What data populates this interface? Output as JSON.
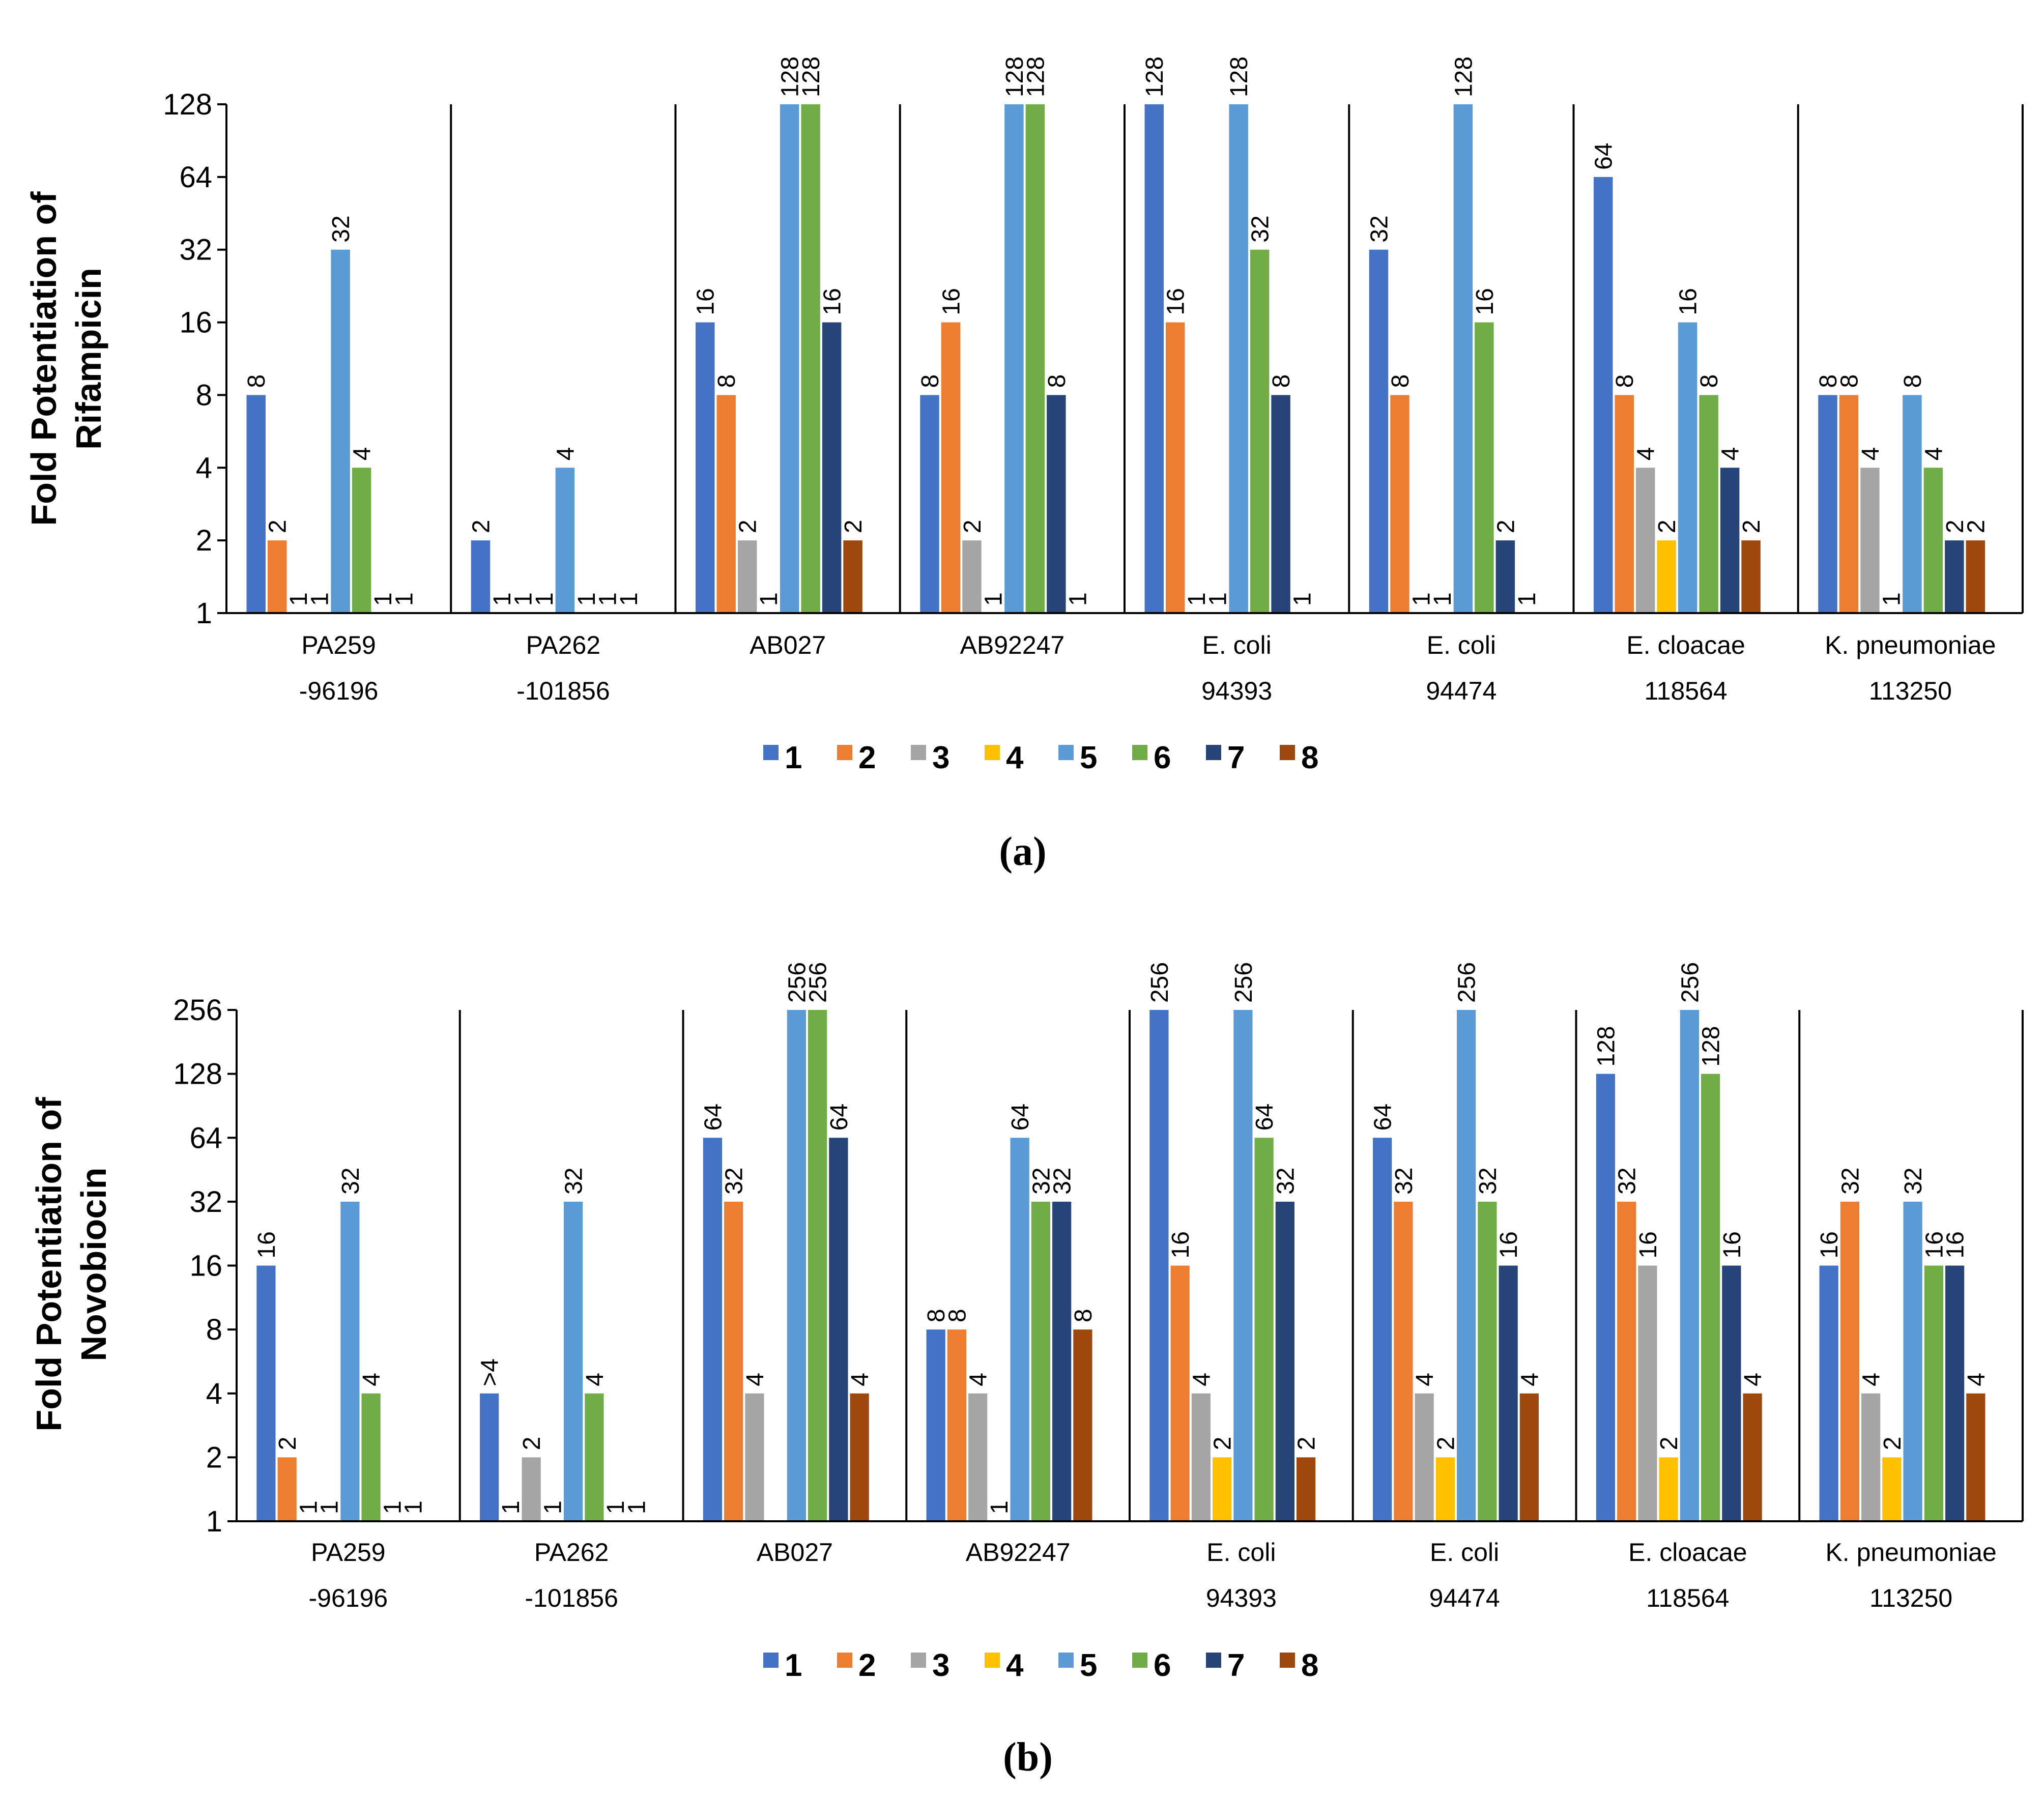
{
  "legend": [
    "1",
    "2",
    "3",
    "4",
    "5",
    "6",
    "7",
    "8"
  ],
  "colors": [
    "#4472C4",
    "#ED7D31",
    "#A5A5A5",
    "#FFC000",
    "#5B9BD5",
    "#70AD47",
    "#264478",
    "#9E480E"
  ],
  "chart_data": [
    {
      "type": "bar",
      "panel": "(a)",
      "ylabel": "Fold Potentiation of Rifampicin",
      "yscale": "log2",
      "ylim": [
        1,
        128
      ],
      "yticks": [
        "1",
        "2",
        "4",
        "8",
        "16",
        "32",
        "64",
        "128"
      ],
      "categories": [
        [
          "PA259",
          "-96196"
        ],
        [
          "PA262",
          "-101856"
        ],
        [
          "AB027"
        ],
        [
          "AB92247"
        ],
        [
          "E. coli",
          "94393"
        ],
        [
          "E. coli",
          "94474"
        ],
        [
          "E. cloacae",
          "118564"
        ],
        [
          "K. pneumoniae",
          "113250"
        ]
      ],
      "groups": [
        {
          "values": [
            8,
            2,
            1,
            1,
            32,
            4,
            1,
            1
          ],
          "labels": [
            "8",
            "2",
            "1",
            "1",
            "32",
            "4",
            "1",
            "1"
          ]
        },
        {
          "values": [
            2,
            1,
            1,
            1,
            4,
            1,
            1,
            1
          ],
          "labels": [
            "2",
            "1",
            "1",
            "1",
            "4",
            "1",
            "1",
            "1"
          ]
        },
        {
          "values": [
            16,
            8,
            2,
            1,
            128,
            128,
            16,
            2
          ],
          "labels": [
            "16",
            "8",
            "2",
            "1",
            "128",
            "128",
            "16",
            "2"
          ]
        },
        {
          "values": [
            8,
            16,
            2,
            1,
            128,
            128,
            8,
            1
          ],
          "labels": [
            "8",
            "16",
            "2",
            "1",
            "128",
            "128",
            "8",
            "1"
          ]
        },
        {
          "values": [
            128,
            16,
            1,
            1,
            128,
            32,
            8,
            1
          ],
          "labels": [
            "128",
            "16",
            "1",
            "1",
            "128",
            "32",
            "8",
            "1"
          ]
        },
        {
          "values": [
            32,
            8,
            1,
            1,
            128,
            16,
            2,
            1
          ],
          "labels": [
            "32",
            "8",
            "1",
            "1",
            "128",
            "16",
            "2",
            "1"
          ]
        },
        {
          "values": [
            64,
            8,
            4,
            2,
            16,
            8,
            4,
            2
          ],
          "labels": [
            "64",
            "8",
            "4",
            "2",
            "16",
            "8",
            "4",
            "2"
          ]
        },
        {
          "values": [
            8,
            8,
            4,
            1,
            8,
            4,
            2,
            2
          ],
          "labels": [
            "8",
            "8",
            "4",
            "1",
            "8",
            "4",
            "2",
            "2"
          ]
        }
      ]
    },
    {
      "type": "bar",
      "panel": "(b)",
      "ylabel": "Fold Potentiation of Novobiocin",
      "yscale": "log2",
      "ylim": [
        1,
        256
      ],
      "yticks": [
        "1",
        "2",
        "4",
        "8",
        "16",
        "32",
        "64",
        "128",
        "256"
      ],
      "categories": [
        [
          "PA259",
          "-96196"
        ],
        [
          "PA262",
          "-101856"
        ],
        [
          "AB027"
        ],
        [
          "AB92247"
        ],
        [
          "E. coli",
          "94393"
        ],
        [
          "E. coli",
          "94474"
        ],
        [
          "E. cloacae",
          "118564"
        ],
        [
          "K. pneumoniae",
          "113250"
        ]
      ],
      "groups": [
        {
          "values": [
            16,
            2,
            1,
            1,
            32,
            4,
            1,
            1
          ],
          "labels": [
            "16",
            "2",
            "1",
            "1",
            "32",
            "4",
            "1",
            "1"
          ]
        },
        {
          "values": [
            4,
            1,
            2,
            1,
            32,
            4,
            1,
            1
          ],
          "labels": [
            ">4",
            "1",
            "2",
            "1",
            "32",
            "4",
            "1",
            "1"
          ]
        },
        {
          "values": [
            64,
            32,
            4,
            1,
            256,
            256,
            64,
            4
          ],
          "labels": [
            "64",
            "32",
            "4",
            "",
            "256",
            "256",
            "64",
            "4"
          ]
        },
        {
          "values": [
            8,
            8,
            4,
            1,
            64,
            32,
            32,
            8
          ],
          "labels": [
            "8",
            "8",
            "4",
            "1",
            "64",
            "32",
            "32",
            "8"
          ]
        },
        {
          "values": [
            256,
            16,
            4,
            2,
            256,
            64,
            32,
            2
          ],
          "labels": [
            "256",
            "16",
            "4",
            "2",
            "256",
            "64",
            "32",
            "2"
          ]
        },
        {
          "values": [
            64,
            32,
            4,
            2,
            256,
            32,
            16,
            4
          ],
          "labels": [
            "64",
            "32",
            "4",
            "2",
            "256",
            "32",
            "16",
            "4"
          ]
        },
        {
          "values": [
            128,
            32,
            16,
            2,
            256,
            128,
            16,
            4
          ],
          "labels": [
            "128",
            "32",
            "16",
            "2",
            "256",
            "128",
            "16",
            "4"
          ]
        },
        {
          "values": [
            16,
            32,
            4,
            2,
            32,
            16,
            16,
            4
          ],
          "labels": [
            "16",
            "32",
            "4",
            "2",
            "32",
            "16",
            "16",
            "4"
          ]
        }
      ]
    }
  ]
}
